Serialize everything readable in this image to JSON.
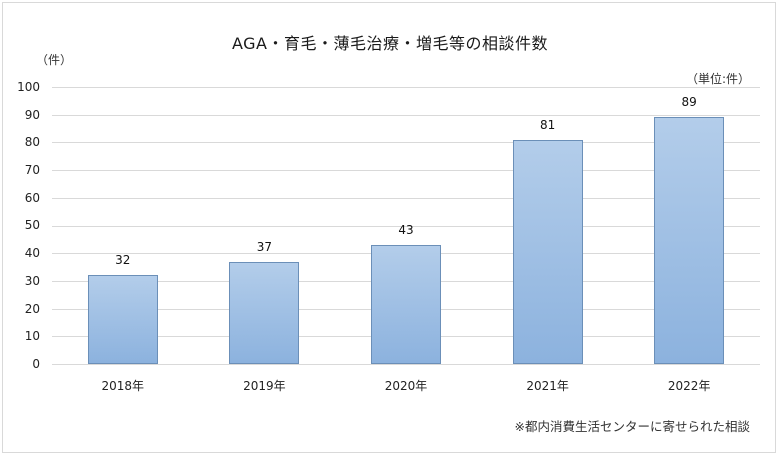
{
  "chart_data": {
    "type": "bar",
    "title": "AGA・育毛・薄毛治療・増毛等の相談件数",
    "ylabel": "（件）",
    "unit_note": "（単位:件）",
    "xlabel": "",
    "categories": [
      "2018年",
      "2019年",
      "2020年",
      "2021年",
      "2022年"
    ],
    "values": [
      32,
      37,
      43,
      81,
      89
    ],
    "value_labels": [
      "32",
      "37",
      "43",
      "81",
      "89"
    ],
    "ylim": [
      0,
      100
    ],
    "yticks": [
      "100",
      "90",
      "80",
      "70",
      "60",
      "50",
      "40",
      "30",
      "20",
      "10",
      "0"
    ],
    "grid": true,
    "legend": null,
    "footnote": "※都内消費生活センターに寄せられた相談",
    "colors": {
      "bar_top": "#b3cdea",
      "bar_bottom": "#8cb2de",
      "bar_border": "#6b8fb8",
      "grid": "#d9d9d9"
    }
  }
}
